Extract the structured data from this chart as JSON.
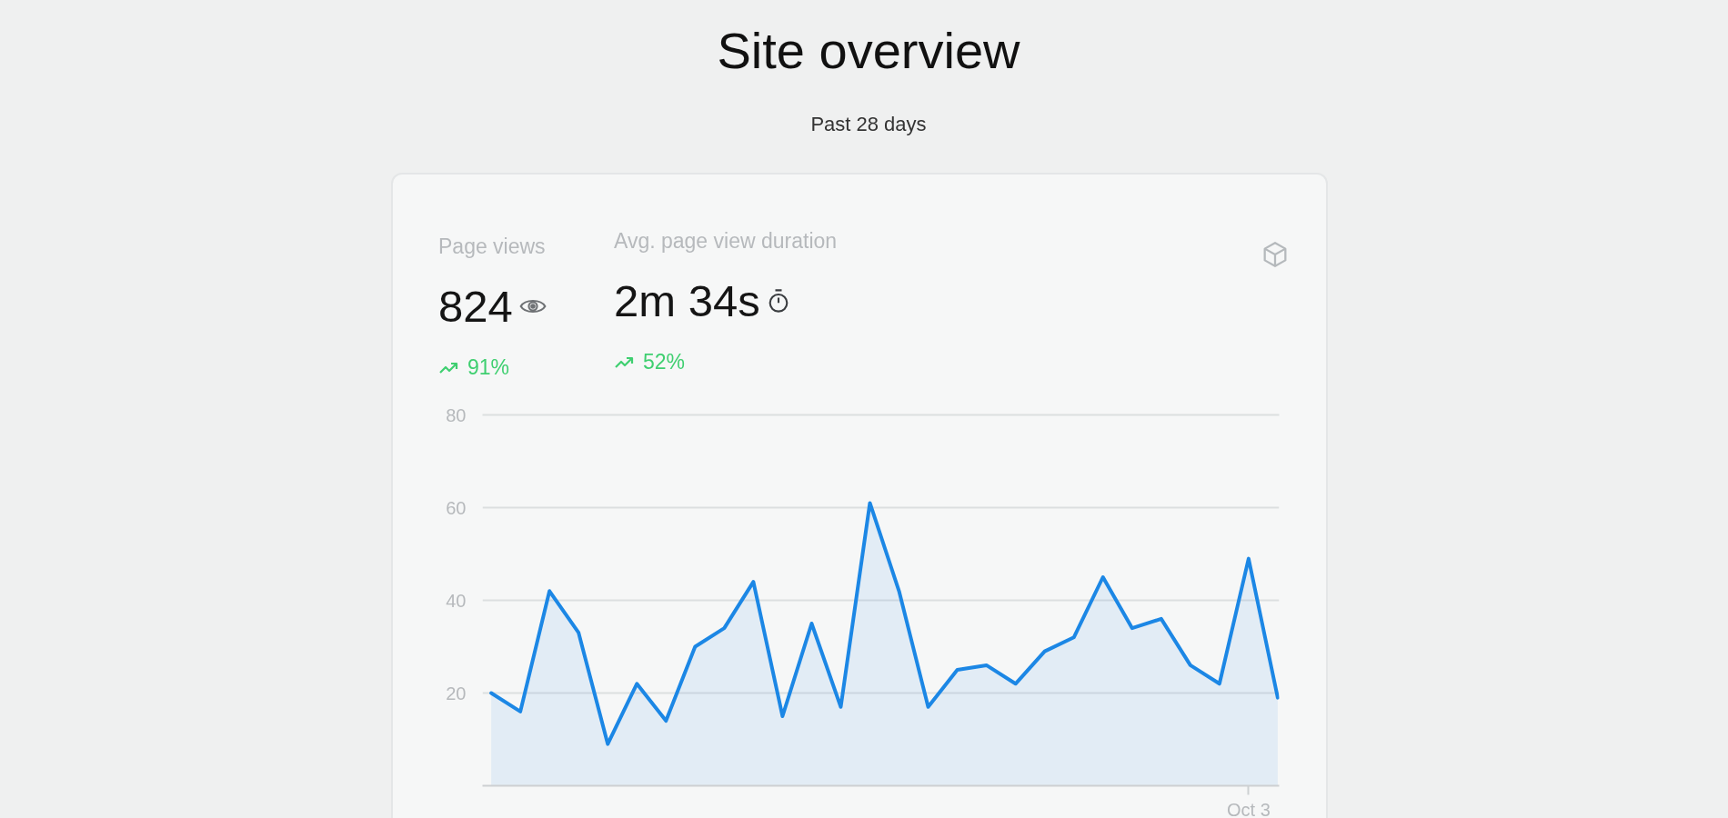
{
  "chart_data": {
    "type": "area",
    "title": "Site overview",
    "subtitle": "Past 28 days",
    "annotations": [
      "Page views",
      "824",
      "91%",
      "Avg. page view duration",
      "2m 34s",
      "52%"
    ],
    "categories": [
      null,
      null,
      null,
      null,
      null,
      null,
      null,
      null,
      null,
      null,
      null,
      null,
      null,
      null,
      null,
      null,
      null,
      null,
      null,
      null,
      null,
      null,
      null,
      null,
      null,
      null,
      "Oct 3",
      null
    ],
    "values": [
      20,
      16,
      42,
      33,
      9,
      22,
      14,
      30,
      34,
      44,
      15,
      35,
      17,
      61,
      42,
      17,
      25,
      26,
      22,
      29,
      32,
      45,
      34,
      36,
      26,
      22,
      49,
      19
    ],
    "color": "#1c87e5",
    "ylim": [
      0,
      80
    ],
    "yticks": [
      20,
      40,
      60,
      80
    ],
    "grid": "y"
  }
}
